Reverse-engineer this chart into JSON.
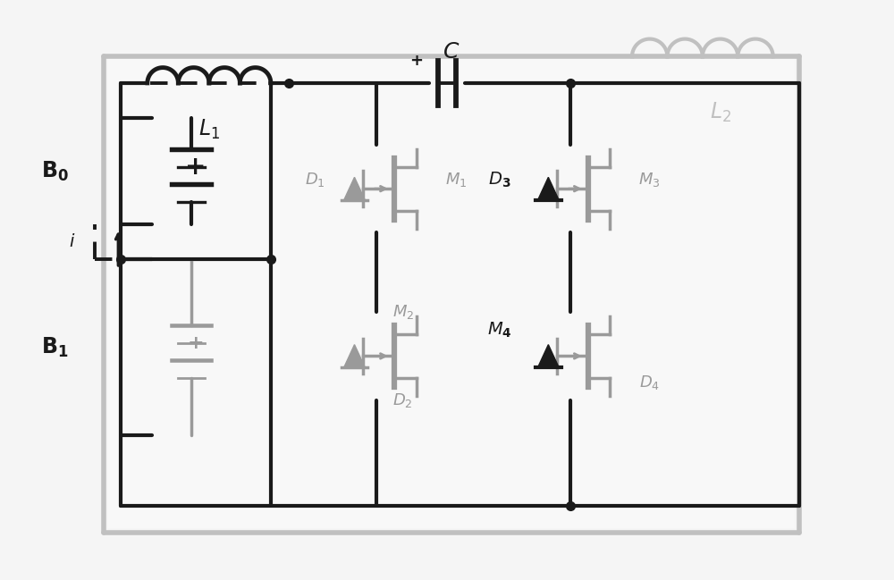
{
  "bg": "#f5f5f5",
  "dark": "#1a1a1a",
  "gray": "#9a9a9a",
  "lgray": "#c0c0c0",
  "white": "#ffffff",
  "fig_w": 10.0,
  "fig_h": 6.49,
  "lw_main": 3.0,
  "lw_gray": 2.5,
  "lw_dash": 2.8
}
